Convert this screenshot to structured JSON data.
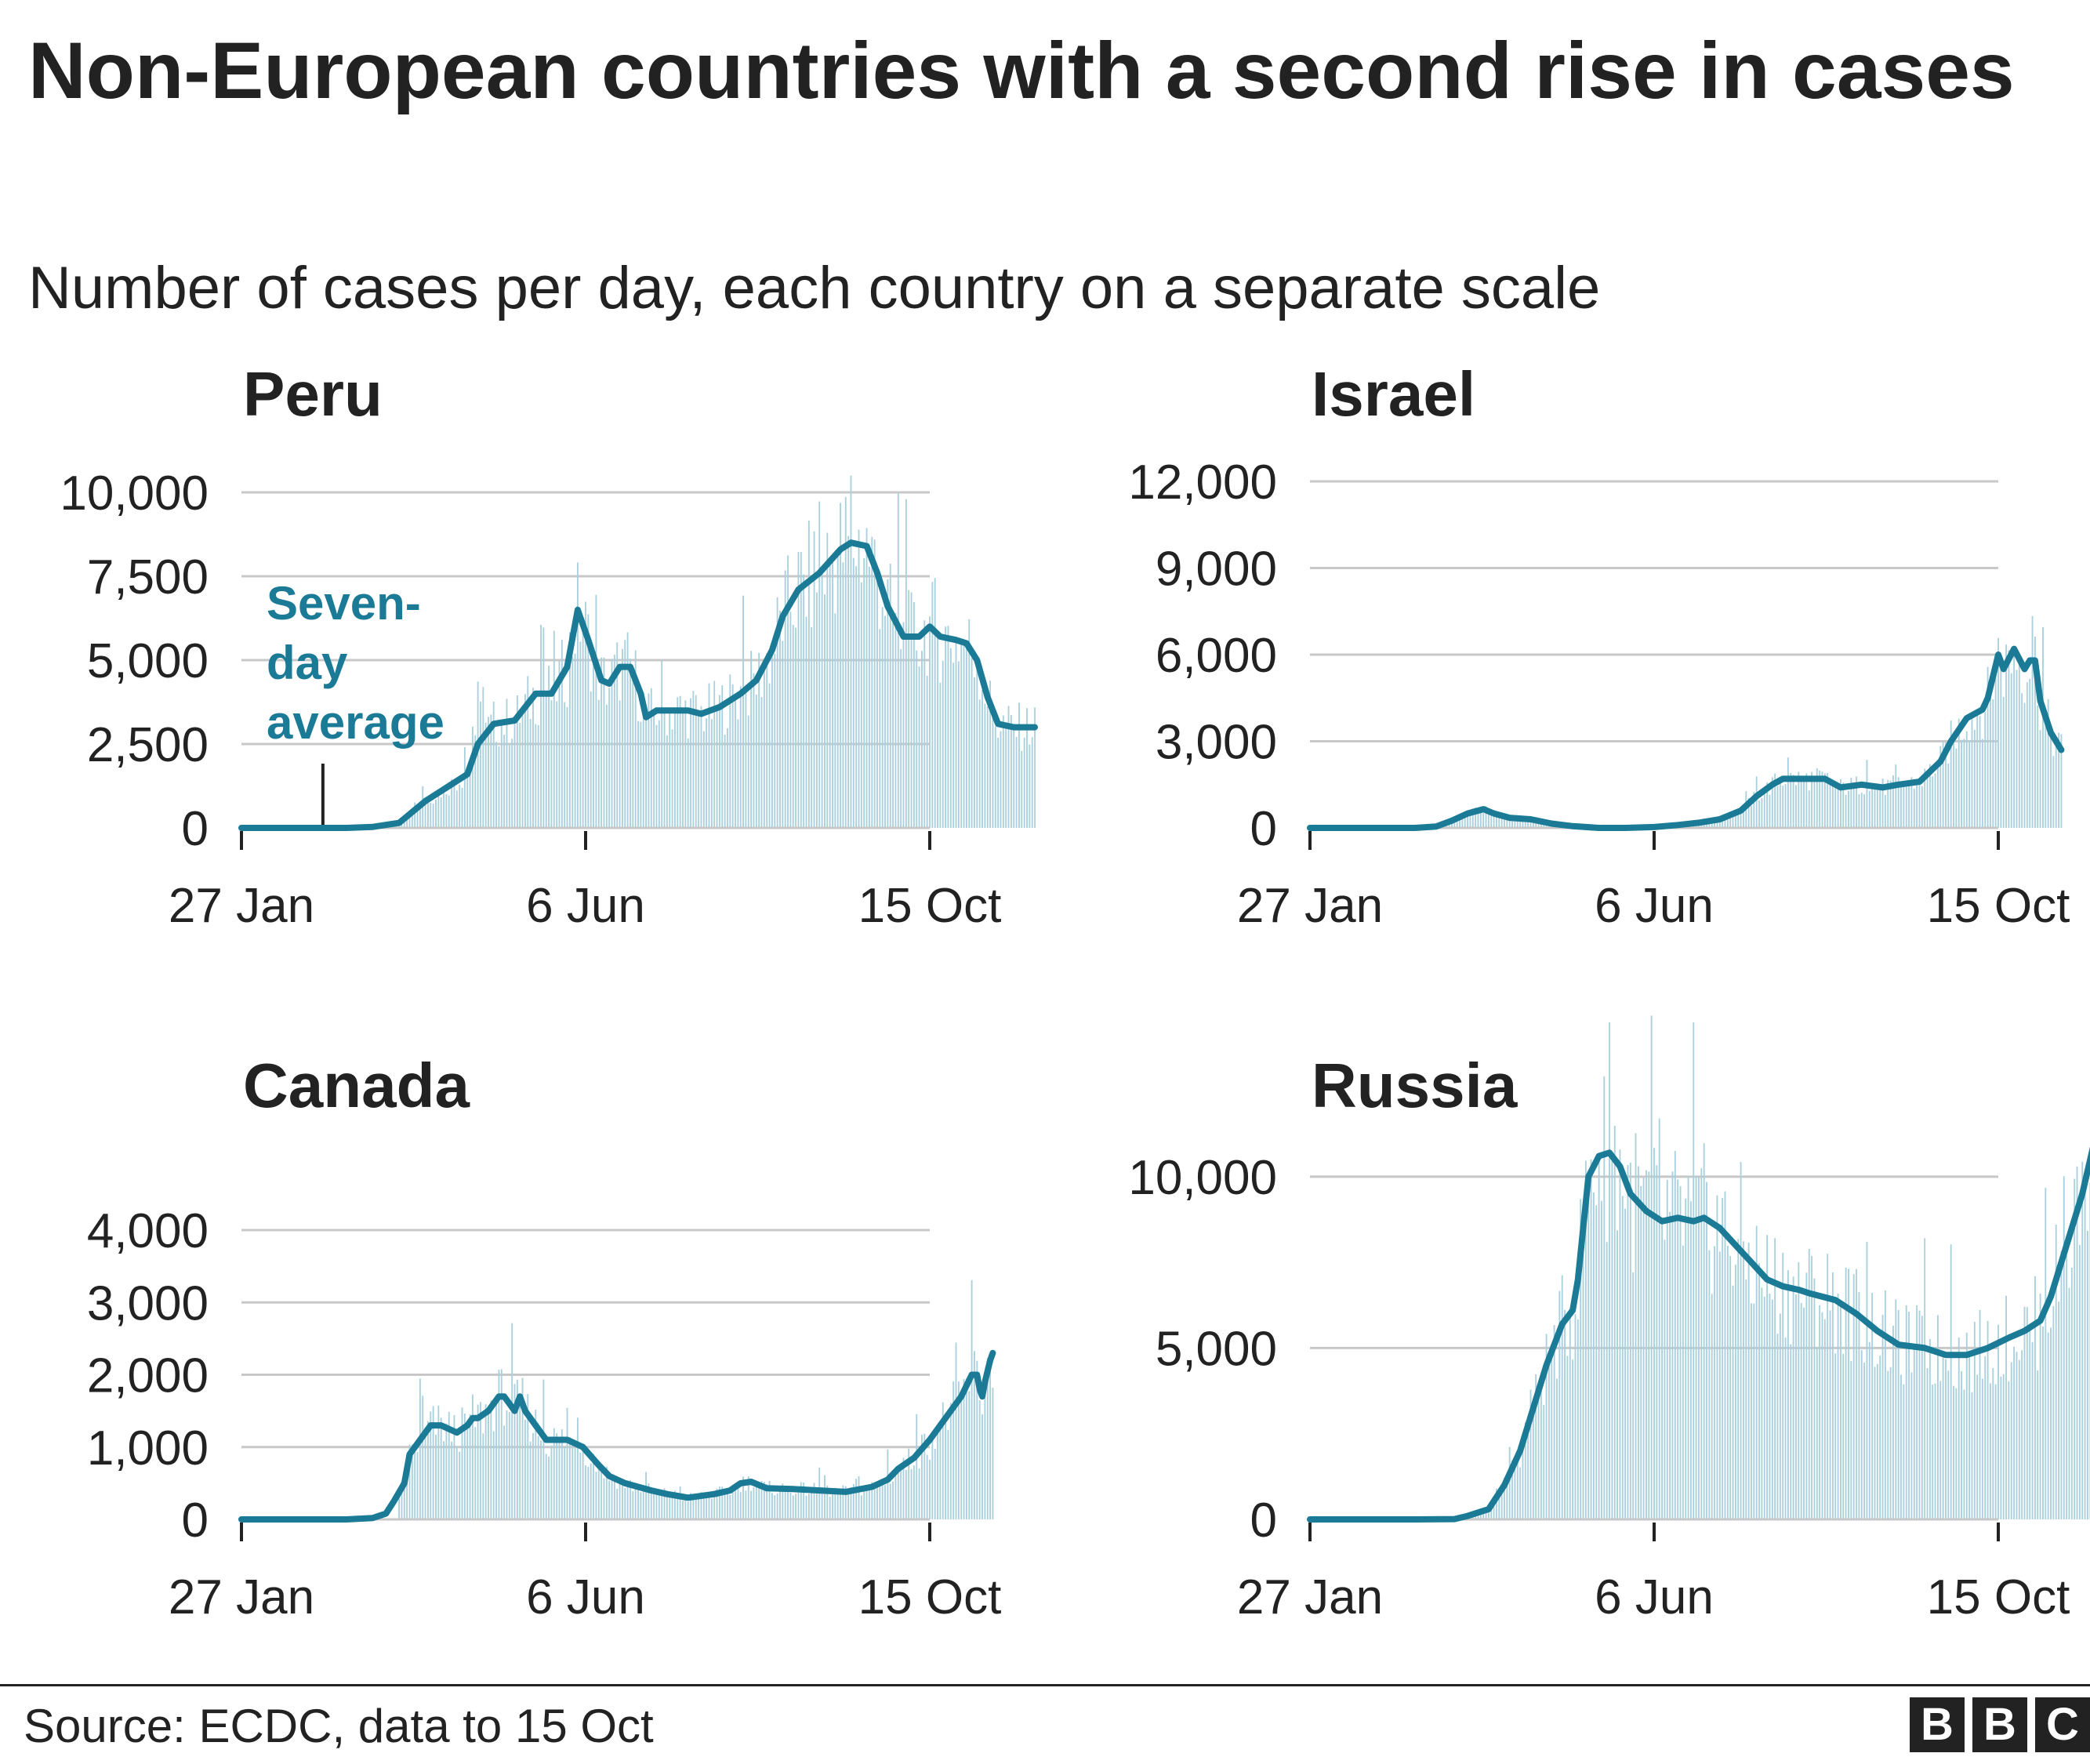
{
  "title": "Non-European countries with a second rise in cases",
  "subtitle": "Number of cases per day, each country on a separate scale",
  "source": "Source: ECDC, data to 15 Oct",
  "logo": [
    "B",
    "B",
    "C"
  ],
  "colors": {
    "line": "#1b7b96",
    "bars": "#a9d0dc",
    "grid": "#c8c8c8",
    "text": "#222222"
  },
  "annotation": {
    "text_lines": [
      "Seven-",
      "day",
      "average"
    ],
    "panel": "Peru",
    "x": 31
  },
  "chart_data": [
    {
      "type": "bar+line",
      "title": "Peru",
      "x_ticks": [
        {
          "x": 0,
          "label": "27 Jan"
        },
        {
          "x": 131,
          "label": "6 Jun"
        },
        {
          "x": 262,
          "label": "15 Oct"
        }
      ],
      "xlim": [
        0,
        262
      ],
      "ylim": [
        0,
        10000
      ],
      "y_ticks": [
        {
          "v": 0,
          "label": "0"
        },
        {
          "v": 2500,
          "label": "2,500"
        },
        {
          "v": 5000,
          "label": "5,000"
        },
        {
          "v": 7500,
          "label": "7,500"
        },
        {
          "v": 10000,
          "label": "10,000"
        }
      ],
      "bars_start": 50,
      "series": [
        {
          "type": "line",
          "points": [
            [
              0,
              0
            ],
            [
              40,
              0
            ],
            [
              50,
              30
            ],
            [
              60,
              150
            ],
            [
              70,
              800
            ],
            [
              80,
              1300
            ],
            [
              86,
              1600
            ],
            [
              90,
              2500
            ],
            [
              96,
              3100
            ],
            [
              104,
              3200
            ],
            [
              112,
              4000
            ],
            [
              118,
              4000
            ],
            [
              124,
              4800
            ],
            [
              128,
              6500
            ],
            [
              132,
              5600
            ],
            [
              137,
              4400
            ],
            [
              140,
              4300
            ],
            [
              144,
              4800
            ],
            [
              148,
              4800
            ],
            [
              152,
              4000
            ],
            [
              154,
              3300
            ],
            [
              158,
              3500
            ],
            [
              165,
              3500
            ],
            [
              170,
              3500
            ],
            [
              175,
              3400
            ],
            [
              182,
              3600
            ],
            [
              190,
              4000
            ],
            [
              196,
              4400
            ],
            [
              202,
              5300
            ],
            [
              206,
              6300
            ],
            [
              212,
              7100
            ],
            [
              220,
              7600
            ],
            [
              228,
              8300
            ],
            [
              232,
              8500
            ],
            [
              238,
              8400
            ],
            [
              242,
              7600
            ],
            [
              246,
              6600
            ],
            [
              252,
              5700
            ],
            [
              258,
              5700
            ],
            [
              262,
              6000
            ],
            [
              266,
              5700
            ],
            [
              272,
              5600
            ],
            [
              276,
              5500
            ],
            [
              280,
              5000
            ],
            [
              284,
              3900
            ],
            [
              288,
              3100
            ],
            [
              294,
              3000
            ],
            [
              302,
              3000
            ]
          ]
        }
      ]
    },
    {
      "type": "bar+line",
      "title": "Israel",
      "x_ticks": [
        {
          "x": 0,
          "label": "27 Jan"
        },
        {
          "x": 131,
          "label": "6 Jun"
        },
        {
          "x": 262,
          "label": "15 Oct"
        }
      ],
      "xlim": [
        0,
        262
      ],
      "ylim": [
        0,
        12000
      ],
      "y_ticks": [
        {
          "v": 0,
          "label": "0"
        },
        {
          "v": 3000,
          "label": "3,000"
        },
        {
          "v": 6000,
          "label": "6,000"
        },
        {
          "v": 9000,
          "label": "9,000"
        },
        {
          "v": 12000,
          "label": "12,000"
        }
      ],
      "bars_start": 40,
      "series": [
        {
          "type": "line",
          "points": [
            [
              0,
              0
            ],
            [
              40,
              0
            ],
            [
              48,
              50
            ],
            [
              54,
              250
            ],
            [
              60,
              500
            ],
            [
              66,
              650
            ],
            [
              70,
              500
            ],
            [
              76,
              350
            ],
            [
              84,
              300
            ],
            [
              92,
              150
            ],
            [
              100,
              60
            ],
            [
              110,
              0
            ],
            [
              120,
              0
            ],
            [
              131,
              30
            ],
            [
              140,
              100
            ],
            [
              148,
              180
            ],
            [
              156,
              300
            ],
            [
              164,
              600
            ],
            [
              170,
              1100
            ],
            [
              176,
              1500
            ],
            [
              180,
              1700
            ],
            [
              190,
              1700
            ],
            [
              196,
              1700
            ],
            [
              202,
              1400
            ],
            [
              210,
              1500
            ],
            [
              218,
              1400
            ],
            [
              224,
              1500
            ],
            [
              232,
              1600
            ],
            [
              240,
              2300
            ],
            [
              244,
              3000
            ],
            [
              250,
              3800
            ],
            [
              256,
              4100
            ],
            [
              258,
              4500
            ],
            [
              262,
              6000
            ],
            [
              264,
              5500
            ],
            [
              268,
              6200
            ],
            [
              272,
              5500
            ],
            [
              274,
              5800
            ],
            [
              276,
              5800
            ],
            [
              278,
              4400
            ],
            [
              282,
              3300
            ],
            [
              286,
              2700
            ]
          ]
        }
      ]
    },
    {
      "type": "bar+line",
      "title": "Canada",
      "x_ticks": [
        {
          "x": 0,
          "label": "27 Jan"
        },
        {
          "x": 131,
          "label": "6 Jun"
        },
        {
          "x": 262,
          "label": "15 Oct"
        }
      ],
      "xlim": [
        0,
        262
      ],
      "ylim": [
        0,
        4000
      ],
      "y_ticks": [
        {
          "v": 0,
          "label": "0"
        },
        {
          "v": 1000,
          "label": "1,000"
        },
        {
          "v": 2000,
          "label": "2,000"
        },
        {
          "v": 3000,
          "label": "3,000"
        },
        {
          "v": 4000,
          "label": "4,000"
        }
      ],
      "bars_start": 60,
      "series": [
        {
          "type": "line",
          "points": [
            [
              0,
              0
            ],
            [
              40,
              0
            ],
            [
              50,
              20
            ],
            [
              55,
              80
            ],
            [
              58,
              250
            ],
            [
              62,
              500
            ],
            [
              64,
              900
            ],
            [
              70,
              1200
            ],
            [
              72,
              1300
            ],
            [
              76,
              1300
            ],
            [
              82,
              1200
            ],
            [
              86,
              1300
            ],
            [
              88,
              1400
            ],
            [
              90,
              1400
            ],
            [
              94,
              1500
            ],
            [
              98,
              1700
            ],
            [
              100,
              1700
            ],
            [
              104,
              1500
            ],
            [
              106,
              1700
            ],
            [
              108,
              1500
            ],
            [
              110,
              1400
            ],
            [
              112,
              1300
            ],
            [
              114,
              1200
            ],
            [
              116,
              1100
            ],
            [
              124,
              1100
            ],
            [
              130,
              1000
            ],
            [
              136,
              750
            ],
            [
              140,
              600
            ],
            [
              146,
              500
            ],
            [
              156,
              400
            ],
            [
              162,
              350
            ],
            [
              170,
              300
            ],
            [
              180,
              350
            ],
            [
              186,
              400
            ],
            [
              190,
              500
            ],
            [
              194,
              520
            ],
            [
              200,
              430
            ],
            [
              210,
              420
            ],
            [
              220,
              400
            ],
            [
              230,
              380
            ],
            [
              240,
              450
            ],
            [
              246,
              550
            ],
            [
              250,
              700
            ],
            [
              256,
              850
            ],
            [
              262,
              1100
            ],
            [
              268,
              1400
            ],
            [
              274,
              1700
            ],
            [
              278,
              2000
            ],
            [
              280,
              2000
            ],
            [
              281,
              1800
            ],
            [
              282,
              1700
            ],
            [
              283,
              1900
            ],
            [
              285,
              2200
            ],
            [
              286,
              2300
            ]
          ]
        }
      ]
    },
    {
      "type": "bar+line",
      "title": "Russia",
      "x_ticks": [
        {
          "x": 0,
          "label": "27 Jan"
        },
        {
          "x": 131,
          "label": "6 Jun"
        },
        {
          "x": 262,
          "label": "15 Oct"
        }
      ],
      "xlim": [
        0,
        262
      ],
      "ylim": [
        0,
        14000
      ],
      "y_ticks": [
        {
          "v": 0,
          "label": "0"
        },
        {
          "v": 5000,
          "label": "5,000"
        },
        {
          "v": 10000,
          "label": "10,000"
        }
      ],
      "bars_start": 55,
      "series": [
        {
          "type": "line",
          "points": [
            [
              0,
              0
            ],
            [
              40,
              0
            ],
            [
              55,
              10
            ],
            [
              60,
              100
            ],
            [
              68,
              300
            ],
            [
              74,
              1000
            ],
            [
              80,
              2000
            ],
            [
              86,
              3500
            ],
            [
              90,
              4500
            ],
            [
              96,
              5700
            ],
            [
              100,
              6100
            ],
            [
              102,
              7000
            ],
            [
              104,
              8500
            ],
            [
              106,
              10000
            ],
            [
              110,
              10600
            ],
            [
              114,
              10700
            ],
            [
              118,
              10300
            ],
            [
              122,
              9500
            ],
            [
              128,
              9000
            ],
            [
              134,
              8700
            ],
            [
              140,
              8800
            ],
            [
              146,
              8700
            ],
            [
              150,
              8800
            ],
            [
              156,
              8500
            ],
            [
              162,
              8000
            ],
            [
              168,
              7500
            ],
            [
              174,
              7000
            ],
            [
              180,
              6800
            ],
            [
              186,
              6700
            ],
            [
              190,
              6600
            ],
            [
              200,
              6400
            ],
            [
              208,
              6000
            ],
            [
              216,
              5500
            ],
            [
              224,
              5100
            ],
            [
              234,
              5000
            ],
            [
              242,
              4800
            ],
            [
              250,
              4800
            ],
            [
              258,
              5000
            ],
            [
              266,
              5300
            ],
            [
              272,
              5500
            ],
            [
              278,
              5800
            ],
            [
              282,
              6500
            ],
            [
              288,
              8000
            ],
            [
              294,
              9500
            ],
            [
              300,
              11500
            ],
            [
              304,
              13000
            ]
          ]
        }
      ]
    }
  ]
}
